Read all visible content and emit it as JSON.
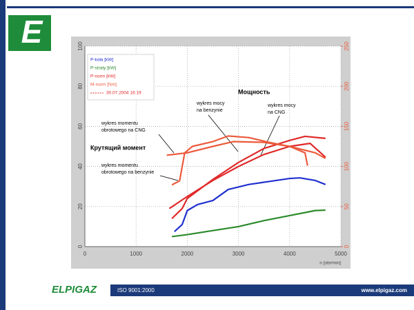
{
  "slide": {
    "logo_letter": "E",
    "footer_logo": "ELPIGAZ",
    "footer_iso": "ISO 9001:2000",
    "footer_url": "www.elpigaz.com"
  },
  "chart_data": {
    "type": "line",
    "xlabel": "n [obr/min]",
    "xlim": [
      0,
      5000
    ],
    "xticks": [
      0,
      1000,
      2000,
      3000,
      4000,
      5000
    ],
    "ylim": [
      0,
      100
    ],
    "yticks": [
      0,
      20,
      40,
      60,
      80,
      100
    ],
    "y2lim": [
      0,
      250
    ],
    "y2ticks": [
      0,
      50,
      100,
      150,
      200,
      250
    ],
    "grid": true,
    "legend": "upper left",
    "legend_note": "30.07.2004 16:19",
    "legend_note_color": "#e02828",
    "series": [
      {
        "name": "P-koła [kW]",
        "color": "#1f2fcf",
        "x": [
          1750,
          1900,
          2000,
          2200,
          2500,
          2800,
          3200,
          3600,
          4000,
          4200,
          4500,
          4700
        ],
        "values": [
          7.5,
          11,
          18,
          21,
          23,
          28.5,
          31,
          32.5,
          34,
          34.3,
          33,
          31
        ]
      },
      {
        "name": "P-straty [kW]",
        "color": "#2a8a2a",
        "x": [
          1700,
          2000,
          2500,
          3000,
          3500,
          4000,
          4500,
          4700
        ],
        "values": [
          5,
          6,
          8,
          10,
          13,
          15.5,
          18,
          18.2
        ]
      },
      {
        "name": "P-norm [kW]",
        "color": "#e02828",
        "x": [
          1700,
          1900,
          2000,
          2500,
          3000,
          3500,
          4000,
          4300,
          4700
        ],
        "values": [
          14,
          19,
          24,
          33.5,
          42,
          49,
          53,
          55,
          54
        ]
      },
      {
        "name": "M-norm [Nm]",
        "color": "#ec5a3c",
        "axis": "y2",
        "x": [
          1700,
          1850,
          1950,
          2100,
          2500,
          2800,
          3200,
          3600,
          4000,
          4300,
          4350
        ],
        "values": [
          77,
          82,
          117,
          125,
          131,
          138,
          136,
          130,
          125,
          117,
          101
        ]
      },
      {
        "color": "#e02828",
        "x": [
          1650,
          2000,
          2500,
          3000,
          3500,
          4000,
          4400,
          4700
        ],
        "values": [
          19,
          25,
          33,
          40,
          46,
          50,
          51.5,
          44.6
        ]
      },
      {
        "color": "#ec5a3c",
        "axis": "y2",
        "x": [
          1600,
          2000,
          2500,
          2900,
          3500,
          4000,
          4500,
          4700
        ],
        "values": [
          114,
          117,
          125,
          131,
          130,
          125,
          117,
          110
        ]
      }
    ],
    "annotations": [
      {
        "lines": [
          "Мощность"
        ],
        "bold": true
      },
      {
        "lines": [
          "wykres mocy",
          "na benzynie"
        ]
      },
      {
        "lines": [
          "wykres mocy",
          "na CNG"
        ]
      },
      {
        "lines": [
          "wykres momentu",
          "obrotowego na CNG"
        ]
      },
      {
        "lines": [
          "Крутящий момент"
        ],
        "bold": true
      },
      {
        "lines": [
          "wykres momentu",
          "obrotowego na benzynie"
        ]
      }
    ]
  }
}
